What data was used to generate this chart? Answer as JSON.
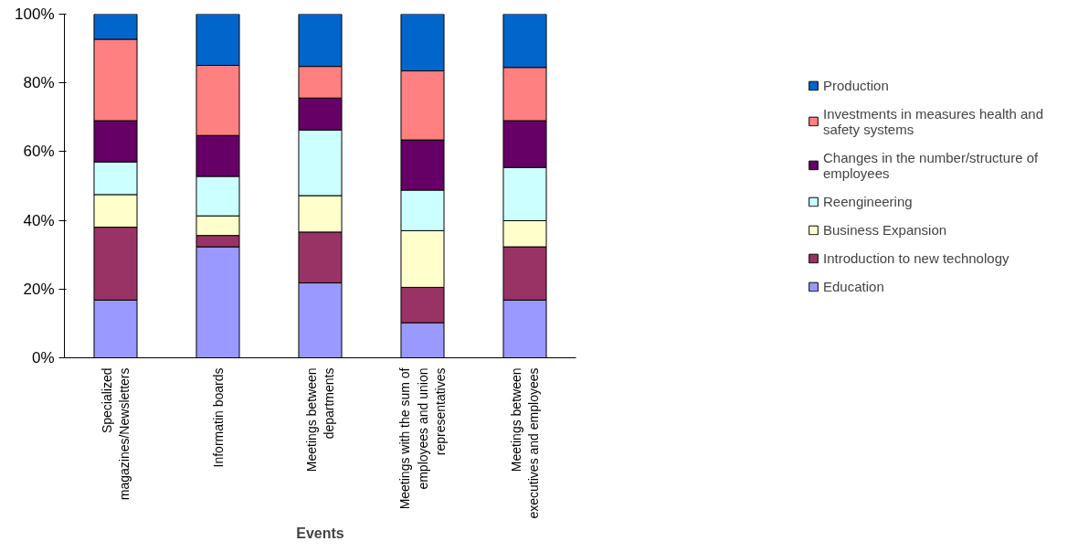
{
  "chart_data": {
    "type": "bar",
    "stacked": true,
    "xlabel": "Events",
    "categories": [
      "Specialized magazines/Newsletters",
      "Informatin boards",
      "Meetings between departments",
      "Meetings with the sum of employees and union representatives",
      "Meetings between executives and employees"
    ],
    "ylim": [
      0,
      100
    ],
    "yticks": [
      {
        "value": 0,
        "label": "0%"
      },
      {
        "value": 20,
        "label": "20%"
      },
      {
        "value": 40,
        "label": "40%"
      },
      {
        "value": 60,
        "label": "60%"
      },
      {
        "value": 80,
        "label": "80%"
      },
      {
        "value": 100,
        "label": "100%"
      }
    ],
    "grid": false,
    "legend": "right",
    "series": [
      {
        "name": "Education",
        "color": "#9999ff",
        "values": [
          16.8,
          32.3,
          21.8,
          10.2,
          16.8
        ]
      },
      {
        "name": "Introduction to new technology",
        "color": "#993366",
        "values": [
          21.2,
          3.3,
          14.8,
          10.3,
          15.5
        ]
      },
      {
        "name": "Business Expansion",
        "color": "#ffffcc",
        "values": [
          9.5,
          5.7,
          10.6,
          16.5,
          7.6
        ]
      },
      {
        "name": "Reengineering",
        "color": "#ccffff",
        "values": [
          9.5,
          11.5,
          19.1,
          11.8,
          15.5
        ]
      },
      {
        "name": "Changes in the number/structure of employees",
        "color": "#660066",
        "values": [
          12,
          11.9,
          9.3,
          14.6,
          13.6
        ]
      },
      {
        "name": "Investments in measures health and safety systems",
        "color": "#ff8080",
        "values": [
          23.7,
          20.4,
          9.2,
          20.1,
          15.5
        ]
      },
      {
        "name": "Production",
        "color": "#0066cc",
        "values": [
          7.3,
          14.9,
          15.2,
          16.5,
          15.5
        ]
      }
    ]
  }
}
